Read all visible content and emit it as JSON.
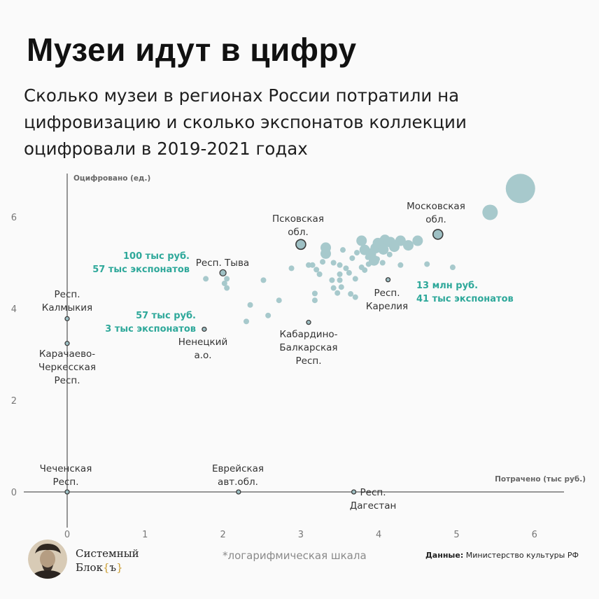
{
  "title": "Музеи идут в цифру",
  "subtitle": "Сколько музеи в регионах России потратили на цифровизацию и сколько экспонатов коллекции оцифровали в 2019-2021 годах",
  "footer": {
    "brand_line1": "Системный",
    "brand_line2_word": "Блок",
    "brand_line2_bracket_open": "{",
    "brand_line2_bracket_char": "ъ",
    "brand_line2_bracket_close": "}",
    "footnote": "*логарифмическая шкала",
    "source_label": "Данные:",
    "source_text": "Министерство культуры РФ"
  },
  "colors": {
    "point": "#a7c9cc",
    "highlight": "#9ec0c4",
    "outline": "#3c3c3c",
    "axis": "#333333",
    "annotation": "#2ea89a"
  },
  "chart_data": {
    "type": "scatter",
    "xlabel": "Потрачено (тыс руб.)",
    "ylabel": "Оцифровано (ед.)",
    "xlim": [
      -0.6,
      6.4
    ],
    "ylim": [
      -0.4,
      6.8
    ],
    "x_ticks": [
      "0",
      "1",
      "2",
      "3",
      "4",
      "5",
      "6"
    ],
    "y_ticks": [
      "0",
      "2",
      "4",
      "6"
    ],
    "points": [
      [
        5.82,
        6.62,
        3
      ],
      [
        5.43,
        6.1,
        2
      ],
      [
        4.08,
        5.5,
        1
      ],
      [
        4.15,
        5.45,
        1
      ],
      [
        4.28,
        5.48,
        1
      ],
      [
        4.5,
        5.48,
        1
      ],
      [
        3.78,
        5.48,
        1
      ],
      [
        3.99,
        5.43,
        1
      ],
      [
        3.96,
        5.32,
        1
      ],
      [
        3.82,
        5.28,
        1
      ],
      [
        3.9,
        5.2,
        1
      ],
      [
        4.06,
        5.29,
        1
      ],
      [
        4.2,
        5.35,
        1
      ],
      [
        4.38,
        5.38,
        1
      ],
      [
        4.14,
        5.18,
        0
      ],
      [
        3.94,
        5.05,
        1
      ],
      [
        3.86,
        5.12,
        0
      ],
      [
        3.32,
        5.33,
        1
      ],
      [
        3.32,
        5.2,
        1
      ],
      [
        3.54,
        5.28,
        0
      ],
      [
        3.72,
        5.22,
        0
      ],
      [
        3.66,
        5.1,
        0
      ],
      [
        3.87,
        4.97,
        0
      ],
      [
        3.78,
        4.9,
        0
      ],
      [
        3.42,
        5.0,
        0
      ],
      [
        3.5,
        4.95,
        0
      ],
      [
        3.28,
        5.02,
        0
      ],
      [
        3.1,
        4.95,
        0
      ],
      [
        3.15,
        4.95,
        0
      ],
      [
        3.2,
        4.85,
        0
      ],
      [
        4.05,
        5.0,
        0
      ],
      [
        3.98,
        5.08,
        0
      ],
      [
        4.28,
        4.95,
        0
      ],
      [
        2.88,
        4.88,
        0
      ],
      [
        3.5,
        4.75,
        0
      ],
      [
        3.62,
        4.78,
        0
      ],
      [
        3.4,
        4.62,
        0
      ],
      [
        3.5,
        4.62,
        0
      ],
      [
        3.7,
        4.65,
        0
      ],
      [
        3.82,
        4.84,
        0
      ],
      [
        3.58,
        4.88,
        0
      ],
      [
        3.24,
        4.75,
        0
      ],
      [
        3.42,
        4.45,
        0
      ],
      [
        3.52,
        4.47,
        0
      ],
      [
        3.47,
        4.34,
        0
      ],
      [
        3.64,
        4.32,
        0
      ],
      [
        3.7,
        4.25,
        0
      ],
      [
        3.18,
        4.33,
        0
      ],
      [
        3.18,
        4.18,
        0
      ],
      [
        4.95,
        4.9,
        0
      ],
      [
        4.62,
        4.97,
        0
      ],
      [
        1.78,
        4.65,
        0
      ],
      [
        2.05,
        4.65,
        0
      ],
      [
        2.52,
        4.62,
        0
      ],
      [
        2.05,
        4.45,
        0
      ],
      [
        2.72,
        4.18,
        0
      ],
      [
        2.35,
        4.08,
        0
      ],
      [
        2.58,
        3.85,
        0
      ],
      [
        2.3,
        3.72,
        0
      ],
      [
        2.02,
        4.55,
        0
      ]
    ],
    "labeled_points": [
      {
        "label": "Московская обл.",
        "x": 4.76,
        "y": 5.62,
        "size": "medium"
      },
      {
        "label": "Псковская обл.",
        "x": 3.0,
        "y": 5.4,
        "size": "medium"
      },
      {
        "label": "Респ. Тыва",
        "x": 2.0,
        "y": 4.78,
        "size": "small"
      },
      {
        "label": "Респ. Карелия",
        "x": 4.12,
        "y": 4.63,
        "size": "tiny"
      },
      {
        "label": "Кабардино-Балкарская Респ.",
        "x": 3.1,
        "y": 3.7,
        "size": "tiny"
      },
      {
        "label": "Ненецкий а.о.",
        "x": 1.76,
        "y": 3.55,
        "size": "tiny"
      },
      {
        "label": "Респ. Калмыкия",
        "x": 0.0,
        "y": 3.78,
        "size": "tiny"
      },
      {
        "label": "Карачаево-Черкесская Респ.",
        "x": 0.0,
        "y": 3.24,
        "size": "tiny"
      },
      {
        "label": "Чеченская Респ.",
        "x": 0.0,
        "y": 0.0,
        "size": "tiny"
      },
      {
        "label": "Еврейская авт.обл.",
        "x": 2.2,
        "y": 0.0,
        "size": "tiny"
      },
      {
        "label": "Респ. Дагестан",
        "x": 3.68,
        "y": 0.0,
        "size": "tiny"
      }
    ],
    "point_labels": [
      {
        "lines": [
          "Московская",
          "обл."
        ],
        "anchor": "middle"
      },
      {
        "lines": [
          "Псковская",
          "обл."
        ],
        "anchor": "middle"
      },
      {
        "lines": [
          "Респ. Тыва"
        ],
        "anchor": "middle"
      },
      {
        "lines": [
          "Респ.",
          "Карелия"
        ],
        "anchor": "middle"
      },
      {
        "lines": [
          "Кабардино-",
          "Балкарская",
          "Респ."
        ],
        "anchor": "middle"
      },
      {
        "lines": [
          "Ненецкий",
          "а.о."
        ],
        "anchor": "middle"
      },
      {
        "lines": [
          "Респ.",
          "Калмыкия"
        ],
        "anchor": "middle"
      },
      {
        "lines": [
          "Карачаево-",
          "Черкесская",
          "Респ."
        ],
        "anchor": "middle"
      },
      {
        "lines": [
          "Чеченская",
          "Респ."
        ],
        "anchor": "middle"
      },
      {
        "lines": [
          "Еврейская",
          "авт.обл."
        ],
        "anchor": "middle"
      },
      {
        "lines": [
          "Респ.",
          "Дагестан"
        ],
        "anchor": "middle"
      }
    ],
    "annotations": [
      {
        "lines": [
          "100 тыс руб.",
          "57 тыс экспонатов"
        ]
      },
      {
        "lines": [
          "57 тыс руб.",
          "3 тыс экспонатов"
        ]
      },
      {
        "lines": [
          "13 млн руб.",
          "41 тыс экспонатов"
        ]
      }
    ],
    "note": "*логарифмическая шкала"
  }
}
